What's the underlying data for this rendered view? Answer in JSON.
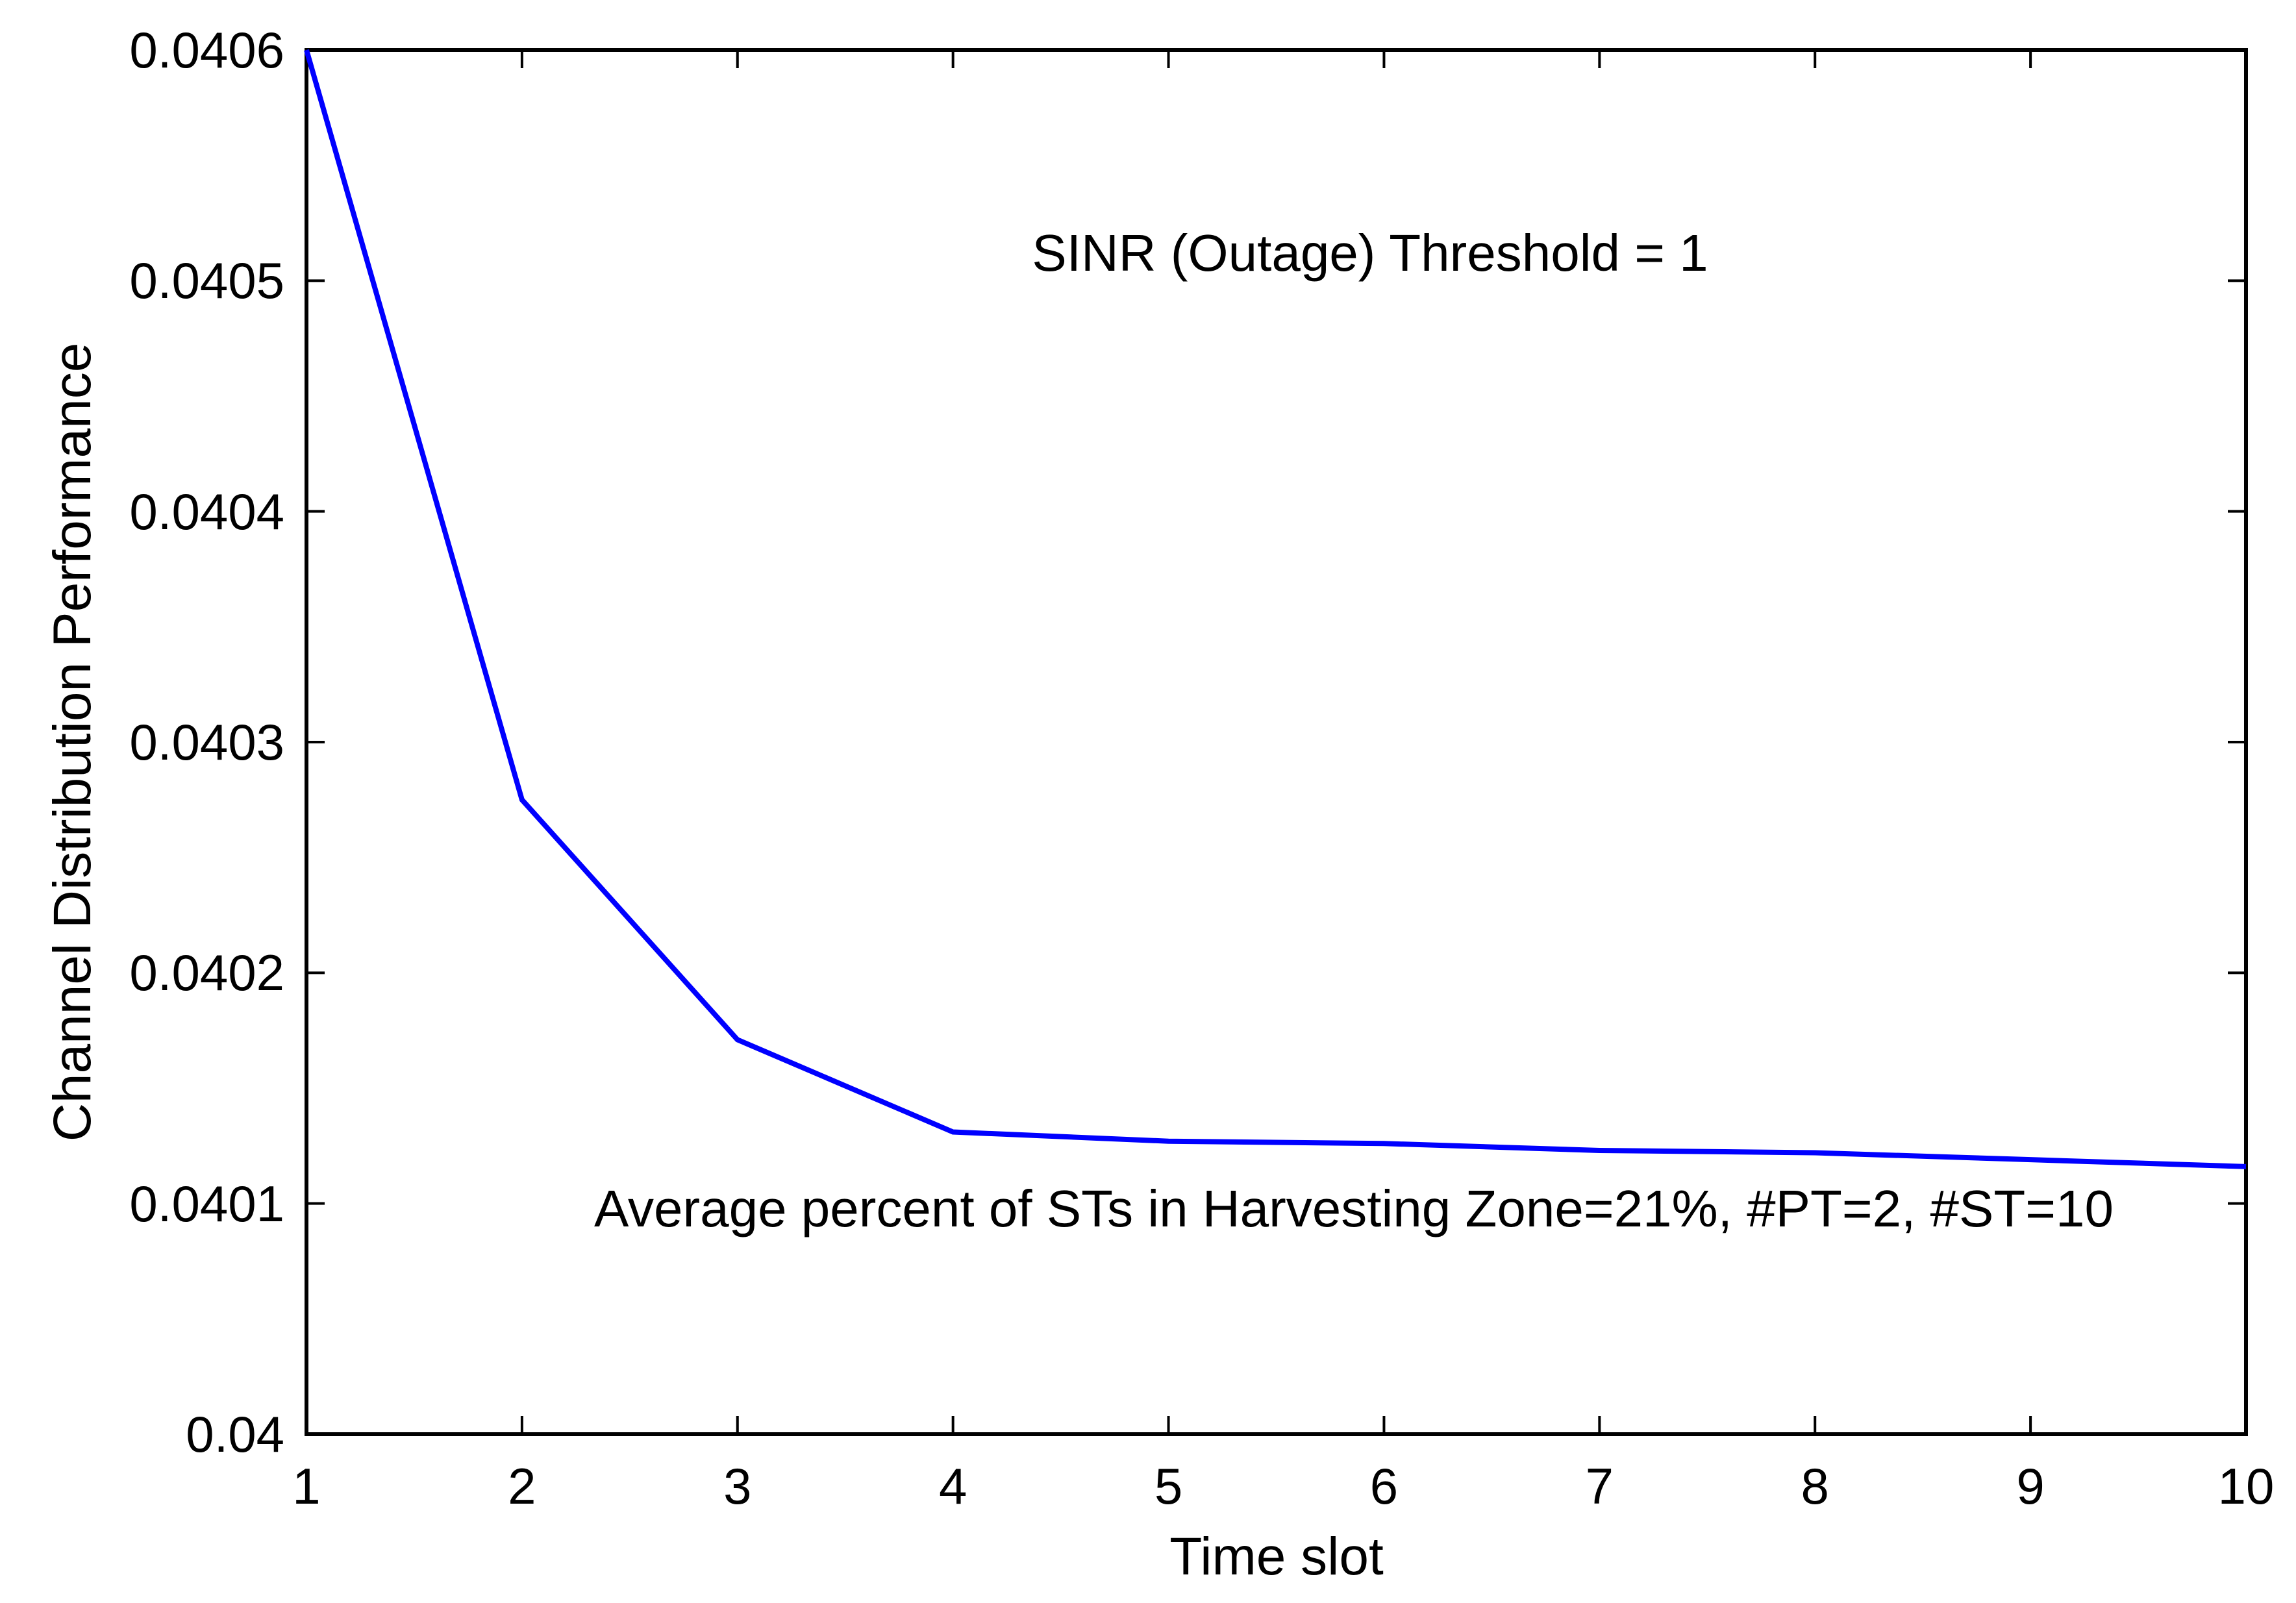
{
  "figure": {
    "background": "#ffffff"
  },
  "chart_data": {
    "type": "line",
    "title": "",
    "xlabel": "Time slot",
    "ylabel": "Channel Distribution Performance",
    "x": [
      1,
      2,
      3,
      4,
      5,
      6,
      7,
      8,
      9,
      10
    ],
    "values": [
      0.0406,
      0.040275,
      0.040171,
      0.040131,
      0.040127,
      0.040126,
      0.040123,
      0.040122,
      0.040119,
      0.040116
    ],
    "xlim": [
      1,
      10
    ],
    "ylim": [
      0.04,
      0.0406
    ],
    "xticks": [
      1,
      2,
      3,
      4,
      5,
      6,
      7,
      8,
      9,
      10
    ],
    "xtick_labels": [
      "1",
      "2",
      "3",
      "4",
      "5",
      "6",
      "7",
      "8",
      "9",
      "10"
    ],
    "yticks": [
      0.04,
      0.0401,
      0.0402,
      0.0403,
      0.0404,
      0.0405,
      0.0406
    ],
    "ytick_labels": [
      "0.04",
      "0.0401",
      "0.0402",
      "0.0403",
      "0.0404",
      "0.0405",
      "0.0406"
    ],
    "grid": false,
    "legend_position": "none",
    "line_color": "#0000ff",
    "line_width": 8,
    "axis_color": "#000000",
    "annotations": [
      {
        "text": "SINR (Outage) Threshold = 1"
      },
      {
        "text": "Average percent of STs in Harvesting Zone=21%, #PT=2, #ST=10"
      }
    ]
  }
}
